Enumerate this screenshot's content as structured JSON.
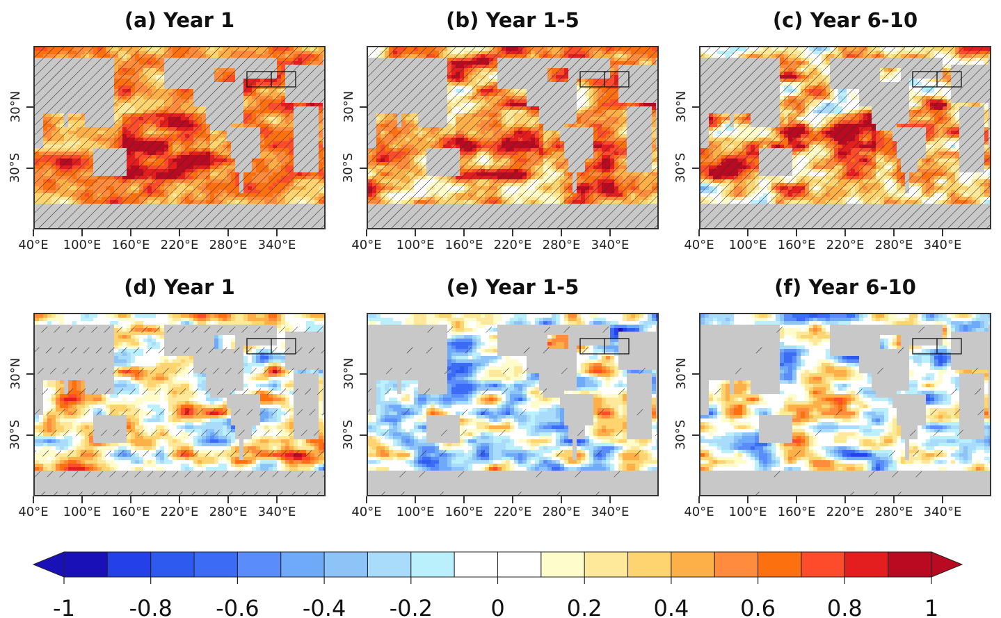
{
  "chart_data": [
    {
      "type": "heatmap",
      "panel": "a",
      "title": "(a) Year 1",
      "xlabel": "",
      "ylabel": "",
      "x_tick_labels": [
        "40°E",
        "100°E",
        "160°E",
        "220°E",
        "280°E",
        "340°E"
      ],
      "x_ticks": [
        40,
        100,
        160,
        220,
        280,
        340
      ],
      "xlim": [
        40,
        400
      ],
      "y_tick_labels": [
        "30°N",
        "30°S"
      ],
      "y_ticks": [
        30,
        -30
      ],
      "ylim": [
        -90,
        90
      ],
      "hatching": "dense (most of ocean significant)",
      "overall_pattern": "predominantly positive (orange/red), max ~0.8 in tropical/subtropical Pacific",
      "box_region": "North Atlantic subpolar box split in two sub-boxes"
    },
    {
      "type": "heatmap",
      "panel": "b",
      "title": "(b) Year 1-5",
      "x_tick_labels": [
        "40°E",
        "100°E",
        "160°E",
        "220°E",
        "280°E",
        "340°E"
      ],
      "y_tick_labels": [
        "30°N",
        "30°S"
      ],
      "hatching": "dense",
      "overall_pattern": "positive (orange/red) widespread, scattered light-blue negatives in Southern Ocean and North Pacific"
    },
    {
      "type": "heatmap",
      "panel": "c",
      "title": "(c) Year 6-10",
      "x_tick_labels": [
        "40°E",
        "100°E",
        "160°E",
        "220°E",
        "280°E",
        "340°E"
      ],
      "y_tick_labels": [
        "30°N",
        "30°S"
      ],
      "hatching": "dense",
      "overall_pattern": "positive dominant, more blue patches in Southern Ocean (~-0.6)"
    },
    {
      "type": "heatmap",
      "panel": "d",
      "title": "(d) Year 1",
      "x_tick_labels": [
        "40°E",
        "100°E",
        "160°E",
        "220°E",
        "280°E",
        "340°E"
      ],
      "y_tick_labels": [
        "30°N",
        "30°S"
      ],
      "hatching": "partial (Pacific)",
      "overall_pattern": "mixed; positive in Pacific (up to ~0.8 off South America), weak negatives elsewhere"
    },
    {
      "type": "heatmap",
      "panel": "e",
      "title": "(e) Year 1-5",
      "x_tick_labels": [
        "40°E",
        "100°E",
        "160°E",
        "220°E",
        "280°E",
        "340°E"
      ],
      "y_tick_labels": [
        "30°N",
        "30°S"
      ],
      "hatching": "sparse",
      "overall_pattern": "mixed; blue in North Pacific and NW Atlantic, red patches in SE Pacific"
    },
    {
      "type": "heatmap",
      "panel": "f",
      "title": "(f) Year 6-10",
      "x_tick_labels": [
        "40°E",
        "100°E",
        "160°E",
        "220°E",
        "280°E",
        "340°E"
      ],
      "y_tick_labels": [
        "30°N",
        "30°S"
      ],
      "hatching": "sparse",
      "overall_pattern": "mostly near zero with blue in Arctic/NW Atlantic and red patches in SE Pacific"
    }
  ],
  "colorbar": {
    "min": -1,
    "max": 1,
    "tick_labels": [
      "-1",
      "-0.8",
      "-0.6",
      "-0.4",
      "-0.2",
      "0",
      "0.2",
      "0.4",
      "0.6",
      "0.8",
      "1"
    ],
    "levels": [
      -1,
      -0.9,
      -0.8,
      -0.7,
      -0.6,
      -0.5,
      -0.4,
      -0.3,
      -0.2,
      -0.1,
      0,
      0.1,
      0.2,
      0.3,
      0.4,
      0.5,
      0.6,
      0.7,
      0.8,
      0.9,
      1
    ],
    "colors": [
      "#1a10b8",
      "#2440e8",
      "#2e5af0",
      "#3c6cf6",
      "#5a8cfc",
      "#6eaaf8",
      "#8cc4f8",
      "#a8dcfa",
      "#baf0fc",
      "#ffffff",
      "#ffffff",
      "#fffccc",
      "#fee89a",
      "#fed470",
      "#feb048",
      "#fe8c3c",
      "#fc7010",
      "#fc4c2c",
      "#e41e1e",
      "#b80a20"
    ],
    "extend": "both",
    "under_color": "#1a10b8",
    "over_color": "#b80a20"
  },
  "land_color": "#c8c8c8"
}
